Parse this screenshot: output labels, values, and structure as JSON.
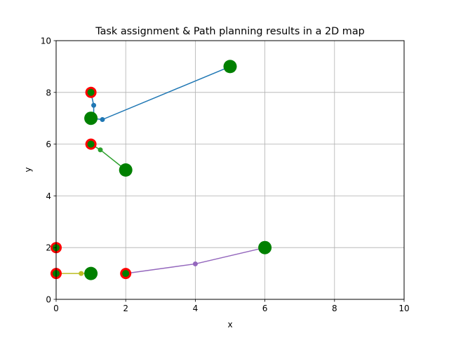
{
  "chart_data": {
    "type": "scatter",
    "title": "Task assignment & Path planning results in a 2D map",
    "xlabel": "x",
    "ylabel": "y",
    "xlim": [
      0,
      10
    ],
    "ylim": [
      0,
      10
    ],
    "xticks": [
      0,
      2,
      4,
      6,
      8,
      10
    ],
    "yticks": [
      0,
      2,
      4,
      6,
      8,
      10
    ],
    "grid": true,
    "colors": {
      "grid": "#b0b0b0",
      "task": "#008000",
      "agent": "#ff0000"
    },
    "tasks": [
      {
        "x": 5,
        "y": 9
      },
      {
        "x": 1,
        "y": 7
      },
      {
        "x": 2,
        "y": 5
      },
      {
        "x": 6,
        "y": 2
      },
      {
        "x": 1,
        "y": 1
      }
    ],
    "agents": [
      {
        "x": 1,
        "y": 8
      },
      {
        "x": 1,
        "y": 6
      },
      {
        "x": 0,
        "y": 2
      },
      {
        "x": 0,
        "y": 1
      },
      {
        "x": 2,
        "y": 1
      }
    ],
    "series": [
      {
        "color": "#1f77b4",
        "x": [
          1,
          1.08,
          1.08,
          1.0,
          1.33,
          5
        ],
        "y": [
          8,
          7.5,
          7.0,
          7.0,
          6.95,
          9
        ]
      },
      {
        "color": "#2ca02c",
        "x": [
          1,
          1.0,
          1.27,
          2
        ],
        "y": [
          6,
          6.0,
          5.78,
          5
        ]
      },
      {
        "color": "#9467bd",
        "x": [
          2,
          2.0,
          4.0,
          6
        ],
        "y": [
          1,
          1.0,
          1.37,
          2
        ]
      },
      {
        "color": "#bcbd22",
        "x": [
          0,
          0.72,
          1.0
        ],
        "y": [
          1,
          1.0,
          1.0
        ]
      }
    ]
  }
}
